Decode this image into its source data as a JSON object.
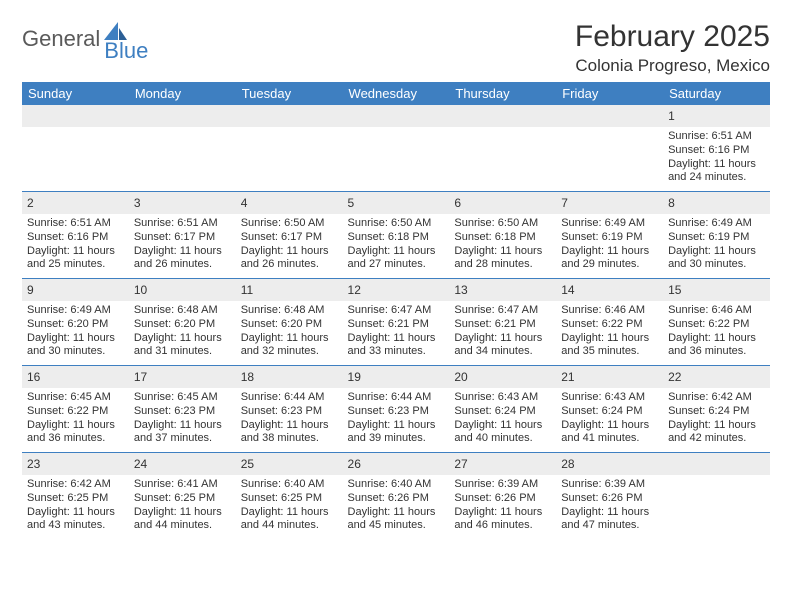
{
  "logo": {
    "word1": "General",
    "word2": "Blue",
    "word1_color": "#5a5a5a",
    "word2_color": "#3e7fc1"
  },
  "title": "February 2025",
  "location": "Colonia Progreso, Mexico",
  "colors": {
    "header_bg": "#3e7fc1",
    "header_text": "#ffffff",
    "daynum_bg": "#ededed",
    "text": "#333333",
    "divider": "#3e7fc1"
  },
  "day_headers": [
    "Sunday",
    "Monday",
    "Tuesday",
    "Wednesday",
    "Thursday",
    "Friday",
    "Saturday"
  ],
  "weeks": [
    [
      {
        "n": "",
        "sr": "",
        "ss": "",
        "dl1": "",
        "dl2": ""
      },
      {
        "n": "",
        "sr": "",
        "ss": "",
        "dl1": "",
        "dl2": ""
      },
      {
        "n": "",
        "sr": "",
        "ss": "",
        "dl1": "",
        "dl2": ""
      },
      {
        "n": "",
        "sr": "",
        "ss": "",
        "dl1": "",
        "dl2": ""
      },
      {
        "n": "",
        "sr": "",
        "ss": "",
        "dl1": "",
        "dl2": ""
      },
      {
        "n": "",
        "sr": "",
        "ss": "",
        "dl1": "",
        "dl2": ""
      },
      {
        "n": "1",
        "sr": "Sunrise: 6:51 AM",
        "ss": "Sunset: 6:16 PM",
        "dl1": "Daylight: 11 hours",
        "dl2": "and 24 minutes."
      }
    ],
    [
      {
        "n": "2",
        "sr": "Sunrise: 6:51 AM",
        "ss": "Sunset: 6:16 PM",
        "dl1": "Daylight: 11 hours",
        "dl2": "and 25 minutes."
      },
      {
        "n": "3",
        "sr": "Sunrise: 6:51 AM",
        "ss": "Sunset: 6:17 PM",
        "dl1": "Daylight: 11 hours",
        "dl2": "and 26 minutes."
      },
      {
        "n": "4",
        "sr": "Sunrise: 6:50 AM",
        "ss": "Sunset: 6:17 PM",
        "dl1": "Daylight: 11 hours",
        "dl2": "and 26 minutes."
      },
      {
        "n": "5",
        "sr": "Sunrise: 6:50 AM",
        "ss": "Sunset: 6:18 PM",
        "dl1": "Daylight: 11 hours",
        "dl2": "and 27 minutes."
      },
      {
        "n": "6",
        "sr": "Sunrise: 6:50 AM",
        "ss": "Sunset: 6:18 PM",
        "dl1": "Daylight: 11 hours",
        "dl2": "and 28 minutes."
      },
      {
        "n": "7",
        "sr": "Sunrise: 6:49 AM",
        "ss": "Sunset: 6:19 PM",
        "dl1": "Daylight: 11 hours",
        "dl2": "and 29 minutes."
      },
      {
        "n": "8",
        "sr": "Sunrise: 6:49 AM",
        "ss": "Sunset: 6:19 PM",
        "dl1": "Daylight: 11 hours",
        "dl2": "and 30 minutes."
      }
    ],
    [
      {
        "n": "9",
        "sr": "Sunrise: 6:49 AM",
        "ss": "Sunset: 6:20 PM",
        "dl1": "Daylight: 11 hours",
        "dl2": "and 30 minutes."
      },
      {
        "n": "10",
        "sr": "Sunrise: 6:48 AM",
        "ss": "Sunset: 6:20 PM",
        "dl1": "Daylight: 11 hours",
        "dl2": "and 31 minutes."
      },
      {
        "n": "11",
        "sr": "Sunrise: 6:48 AM",
        "ss": "Sunset: 6:20 PM",
        "dl1": "Daylight: 11 hours",
        "dl2": "and 32 minutes."
      },
      {
        "n": "12",
        "sr": "Sunrise: 6:47 AM",
        "ss": "Sunset: 6:21 PM",
        "dl1": "Daylight: 11 hours",
        "dl2": "and 33 minutes."
      },
      {
        "n": "13",
        "sr": "Sunrise: 6:47 AM",
        "ss": "Sunset: 6:21 PM",
        "dl1": "Daylight: 11 hours",
        "dl2": "and 34 minutes."
      },
      {
        "n": "14",
        "sr": "Sunrise: 6:46 AM",
        "ss": "Sunset: 6:22 PM",
        "dl1": "Daylight: 11 hours",
        "dl2": "and 35 minutes."
      },
      {
        "n": "15",
        "sr": "Sunrise: 6:46 AM",
        "ss": "Sunset: 6:22 PM",
        "dl1": "Daylight: 11 hours",
        "dl2": "and 36 minutes."
      }
    ],
    [
      {
        "n": "16",
        "sr": "Sunrise: 6:45 AM",
        "ss": "Sunset: 6:22 PM",
        "dl1": "Daylight: 11 hours",
        "dl2": "and 36 minutes."
      },
      {
        "n": "17",
        "sr": "Sunrise: 6:45 AM",
        "ss": "Sunset: 6:23 PM",
        "dl1": "Daylight: 11 hours",
        "dl2": "and 37 minutes."
      },
      {
        "n": "18",
        "sr": "Sunrise: 6:44 AM",
        "ss": "Sunset: 6:23 PM",
        "dl1": "Daylight: 11 hours",
        "dl2": "and 38 minutes."
      },
      {
        "n": "19",
        "sr": "Sunrise: 6:44 AM",
        "ss": "Sunset: 6:23 PM",
        "dl1": "Daylight: 11 hours",
        "dl2": "and 39 minutes."
      },
      {
        "n": "20",
        "sr": "Sunrise: 6:43 AM",
        "ss": "Sunset: 6:24 PM",
        "dl1": "Daylight: 11 hours",
        "dl2": "and 40 minutes."
      },
      {
        "n": "21",
        "sr": "Sunrise: 6:43 AM",
        "ss": "Sunset: 6:24 PM",
        "dl1": "Daylight: 11 hours",
        "dl2": "and 41 minutes."
      },
      {
        "n": "22",
        "sr": "Sunrise: 6:42 AM",
        "ss": "Sunset: 6:24 PM",
        "dl1": "Daylight: 11 hours",
        "dl2": "and 42 minutes."
      }
    ],
    [
      {
        "n": "23",
        "sr": "Sunrise: 6:42 AM",
        "ss": "Sunset: 6:25 PM",
        "dl1": "Daylight: 11 hours",
        "dl2": "and 43 minutes."
      },
      {
        "n": "24",
        "sr": "Sunrise: 6:41 AM",
        "ss": "Sunset: 6:25 PM",
        "dl1": "Daylight: 11 hours",
        "dl2": "and 44 minutes."
      },
      {
        "n": "25",
        "sr": "Sunrise: 6:40 AM",
        "ss": "Sunset: 6:25 PM",
        "dl1": "Daylight: 11 hours",
        "dl2": "and 44 minutes."
      },
      {
        "n": "26",
        "sr": "Sunrise: 6:40 AM",
        "ss": "Sunset: 6:26 PM",
        "dl1": "Daylight: 11 hours",
        "dl2": "and 45 minutes."
      },
      {
        "n": "27",
        "sr": "Sunrise: 6:39 AM",
        "ss": "Sunset: 6:26 PM",
        "dl1": "Daylight: 11 hours",
        "dl2": "and 46 minutes."
      },
      {
        "n": "28",
        "sr": "Sunrise: 6:39 AM",
        "ss": "Sunset: 6:26 PM",
        "dl1": "Daylight: 11 hours",
        "dl2": "and 47 minutes."
      },
      {
        "n": "",
        "sr": "",
        "ss": "",
        "dl1": "",
        "dl2": ""
      }
    ]
  ]
}
